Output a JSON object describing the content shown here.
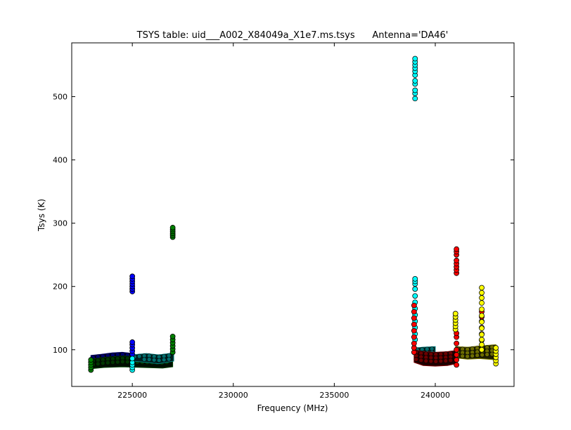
{
  "chart_data": {
    "type": "scatter",
    "title": "TSYS table: uid___A002_X84049a_X1e7.ms.tsys      Antenna='DA46'",
    "xlabel": "Frequency (MHz)",
    "ylabel": "Tsys (K)",
    "xlim": [
      222000,
      243900
    ],
    "ylim": [
      42,
      585
    ],
    "xticks": [
      225000,
      230000,
      235000,
      240000
    ],
    "yticks": [
      100,
      200,
      300,
      400,
      500
    ],
    "grid": false,
    "legend": "none",
    "series": [
      {
        "color": "#0000ff",
        "bands": [
          {
            "x0": 222950,
            "x1": 225050,
            "y": [
              [
                222950,
                84,
                91
              ],
              [
                223500,
                82,
                93
              ],
              [
                224000,
                81,
                95
              ],
              [
                224500,
                82,
                96
              ],
              [
                225050,
                83,
                94
              ]
            ]
          }
        ],
        "spikes": [
          {
            "x": 225000,
            "y": [
              93,
              98,
              103,
              108,
              112,
              192,
              196,
              200,
              204,
              208,
              212,
              216
            ]
          }
        ]
      },
      {
        "color": "#008000",
        "bands": [
          {
            "x0": 222950,
            "x1": 227000,
            "y": [
              [
                222950,
                70,
                85
              ],
              [
                223600,
                72,
                88
              ],
              [
                224500,
                73,
                90
              ],
              [
                225500,
                72,
                89
              ],
              [
                226500,
                71,
                88
              ],
              [
                227000,
                73,
                90
              ]
            ]
          }
        ],
        "spikes": [
          {
            "x": 222950,
            "y": [
              68,
              72,
              76,
              80,
              84
            ]
          },
          {
            "x": 227000,
            "y": [
              96,
              101,
              106,
              111,
              116,
              121,
              278,
              281,
              284,
              287,
              290,
              293
            ]
          }
        ]
      },
      {
        "color": "#00ffff",
        "bands": [
          {
            "x0": 225000,
            "x1": 227050,
            "y": [
              [
                225000,
                82,
                92
              ],
              [
                225700,
                80,
                94
              ],
              [
                226300,
                78,
                92
              ],
              [
                227050,
                82,
                95
              ]
            ]
          },
          {
            "x0": 239000,
            "x1": 240000,
            "y": [
              [
                239000,
                90,
                103
              ],
              [
                239400,
                88,
                104
              ],
              [
                240000,
                92,
                105
              ]
            ]
          }
        ],
        "spikes": [
          {
            "x": 225000,
            "y": [
              68,
              72,
              76,
              80,
              86
            ]
          },
          {
            "x": 239000,
            "y": [
              497,
              505,
              510,
              520,
              525,
              534,
              540,
              545,
              550,
              555,
              560,
              116,
              125,
              135,
              145,
              155,
              165,
              175,
              185,
              196,
              204,
              208,
              212
            ]
          }
        ]
      },
      {
        "color": "#ff0000",
        "bands": [
          {
            "x0": 238950,
            "x1": 241050,
            "y": [
              [
                238950,
                80,
                100
              ],
              [
                239400,
                75,
                97
              ],
              [
                240000,
                74,
                96
              ],
              [
                240600,
                75,
                97
              ],
              [
                241050,
                78,
                99
              ]
            ]
          }
        ],
        "spikes": [
          {
            "x": 238950,
            "y": [
              96,
              103,
              110,
              120,
              130,
              140,
              150,
              160,
              170
            ]
          },
          {
            "x": 241050,
            "y": [
              76,
              84,
              92,
              100,
              110,
              120,
              126,
              221,
              226,
              231,
              236,
              241,
              250,
              255,
              259
            ]
          },
          {
            "x": 242300,
            "y": [
              115,
              125,
              135,
              145,
              152,
              160
            ]
          }
        ]
      },
      {
        "color": "#ffff00",
        "bands": [
          {
            "x0": 241000,
            "x1": 243000,
            "y": [
              [
                241000,
                87,
                105
              ],
              [
                241600,
                85,
                104
              ],
              [
                242200,
                86,
                106
              ],
              [
                243000,
                84,
                108
              ]
            ]
          }
        ],
        "spikes": [
          {
            "x": 241000,
            "y": [
              132,
              137,
              142,
              147,
              152,
              157
            ]
          },
          {
            "x": 242300,
            "y": [
              100,
              108,
              116,
              124,
              134,
              144,
              154,
              164,
              174,
              182,
              190,
              198
            ]
          },
          {
            "x": 243000,
            "y": [
              78,
              83,
              88,
              93,
              98,
              103
            ]
          }
        ]
      }
    ]
  }
}
